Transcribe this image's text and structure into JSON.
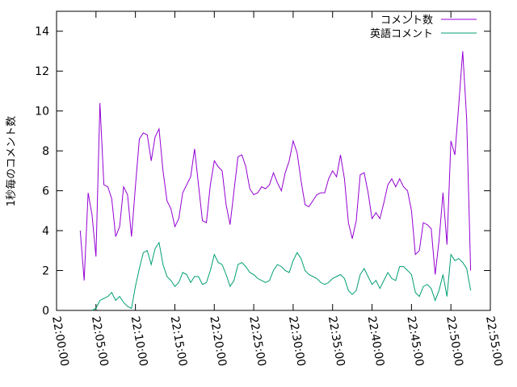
{
  "chart_data": {
    "type": "line",
    "title": "",
    "xlabel": "",
    "ylabel": "1秒毎のコメント数",
    "ylim": [
      0,
      15
    ],
    "xlim": [
      "22:00:00",
      "22:55:00"
    ],
    "x_ticks": [
      "22:00:00",
      "22:05:00",
      "22:10:00",
      "22:15:00",
      "22:20:00",
      "22:25:00",
      "22:30:00",
      "22:35:00",
      "22:40:00",
      "22:45:00",
      "22:50:00",
      "22:55:00"
    ],
    "y_ticks": [
      "0",
      "2",
      "4",
      "6",
      "8",
      "10",
      "12",
      "14"
    ],
    "grid": false,
    "legend_position": "top-right",
    "series": [
      {
        "name": "コメント数",
        "color": "#9400d3",
        "points": [
          [
            "22:03:00",
            4.0
          ],
          [
            "22:03:30",
            1.5
          ],
          [
            "22:04:00",
            5.9
          ],
          [
            "22:04:30",
            4.8
          ],
          [
            "22:05:00",
            2.7
          ],
          [
            "22:05:30",
            10.4
          ],
          [
            "22:06:00",
            6.3
          ],
          [
            "22:06:30",
            6.2
          ],
          [
            "22:07:00",
            5.6
          ],
          [
            "22:07:30",
            3.7
          ],
          [
            "22:08:00",
            4.2
          ],
          [
            "22:08:30",
            6.2
          ],
          [
            "22:09:00",
            5.8
          ],
          [
            "22:09:30",
            3.7
          ],
          [
            "22:10:00",
            6.2
          ],
          [
            "22:10:30",
            8.6
          ],
          [
            "22:11:00",
            8.9
          ],
          [
            "22:11:30",
            8.8
          ],
          [
            "22:12:00",
            7.5
          ],
          [
            "22:12:30",
            8.7
          ],
          [
            "22:13:00",
            9.1
          ],
          [
            "22:13:30",
            7.0
          ],
          [
            "22:14:00",
            5.5
          ],
          [
            "22:14:30",
            5.1
          ],
          [
            "22:15:00",
            4.2
          ],
          [
            "22:15:30",
            4.6
          ],
          [
            "22:16:00",
            5.9
          ],
          [
            "22:16:30",
            6.3
          ],
          [
            "22:17:00",
            6.7
          ],
          [
            "22:17:30",
            8.1
          ],
          [
            "22:18:00",
            6.3
          ],
          [
            "22:18:30",
            4.5
          ],
          [
            "22:19:00",
            4.4
          ],
          [
            "22:19:30",
            6.3
          ],
          [
            "22:20:00",
            7.5
          ],
          [
            "22:20:30",
            7.2
          ],
          [
            "22:21:00",
            7.0
          ],
          [
            "22:21:30",
            5.3
          ],
          [
            "22:22:00",
            4.3
          ],
          [
            "22:22:30",
            6.0
          ],
          [
            "22:23:00",
            7.7
          ],
          [
            "22:23:30",
            7.8
          ],
          [
            "22:24:00",
            7.2
          ],
          [
            "22:24:30",
            6.1
          ],
          [
            "22:25:00",
            5.8
          ],
          [
            "22:25:30",
            5.9
          ],
          [
            "22:26:00",
            6.2
          ],
          [
            "22:26:30",
            6.1
          ],
          [
            "22:27:00",
            6.3
          ],
          [
            "22:27:30",
            6.9
          ],
          [
            "22:28:00",
            6.4
          ],
          [
            "22:28:30",
            6.0
          ],
          [
            "22:29:00",
            6.9
          ],
          [
            "22:29:30",
            7.5
          ],
          [
            "22:30:00",
            8.5
          ],
          [
            "22:30:30",
            7.9
          ],
          [
            "22:31:00",
            6.5
          ],
          [
            "22:31:30",
            5.3
          ],
          [
            "22:32:00",
            5.2
          ],
          [
            "22:32:30",
            5.5
          ],
          [
            "22:33:00",
            5.8
          ],
          [
            "22:33:30",
            5.9
          ],
          [
            "22:34:00",
            5.9
          ],
          [
            "22:34:30",
            6.6
          ],
          [
            "22:35:00",
            7.0
          ],
          [
            "22:35:30",
            6.7
          ],
          [
            "22:36:00",
            7.8
          ],
          [
            "22:36:30",
            6.6
          ],
          [
            "22:37:00",
            4.4
          ],
          [
            "22:37:30",
            3.6
          ],
          [
            "22:38:00",
            4.5
          ],
          [
            "22:38:30",
            6.8
          ],
          [
            "22:39:00",
            6.9
          ],
          [
            "22:39:30",
            5.9
          ],
          [
            "22:40:00",
            4.6
          ],
          [
            "22:40:30",
            4.9
          ],
          [
            "22:41:00",
            4.6
          ],
          [
            "22:41:30",
            5.4
          ],
          [
            "22:42:00",
            6.3
          ],
          [
            "22:42:30",
            6.6
          ],
          [
            "22:43:00",
            6.2
          ],
          [
            "22:43:30",
            6.6
          ],
          [
            "22:44:00",
            6.2
          ],
          [
            "22:44:30",
            6.0
          ],
          [
            "22:45:00",
            5.0
          ],
          [
            "22:45:30",
            2.8
          ],
          [
            "22:46:00",
            3.0
          ],
          [
            "22:46:30",
            4.4
          ],
          [
            "22:47:00",
            4.3
          ],
          [
            "22:47:30",
            4.1
          ],
          [
            "22:48:00",
            1.8
          ],
          [
            "22:48:30",
            3.5
          ],
          [
            "22:49:00",
            5.9
          ],
          [
            "22:49:30",
            3.3
          ],
          [
            "22:50:00",
            8.5
          ],
          [
            "22:50:30",
            7.8
          ],
          [
            "22:51:00",
            10.3
          ],
          [
            "22:51:30",
            13.0
          ],
          [
            "22:52:00",
            9.6
          ],
          [
            "22:52:30",
            2.0
          ]
        ]
      },
      {
        "name": "英語コメント",
        "color": "#009e73",
        "points": [
          [
            "22:04:30",
            0.0
          ],
          [
            "22:05:00",
            0.1
          ],
          [
            "22:05:30",
            0.5
          ],
          [
            "22:06:00",
            0.6
          ],
          [
            "22:06:30",
            0.7
          ],
          [
            "22:07:00",
            0.9
          ],
          [
            "22:07:30",
            0.5
          ],
          [
            "22:08:00",
            0.7
          ],
          [
            "22:08:30",
            0.4
          ],
          [
            "22:09:00",
            0.2
          ],
          [
            "22:09:30",
            0.1
          ],
          [
            "22:10:00",
            1.2
          ],
          [
            "22:10:30",
            2.1
          ],
          [
            "22:11:00",
            2.9
          ],
          [
            "22:11:30",
            3.0
          ],
          [
            "22:12:00",
            2.3
          ],
          [
            "22:12:30",
            3.1
          ],
          [
            "22:13:00",
            3.4
          ],
          [
            "22:13:30",
            2.3
          ],
          [
            "22:14:00",
            1.7
          ],
          [
            "22:14:30",
            1.5
          ],
          [
            "22:15:00",
            1.2
          ],
          [
            "22:15:30",
            1.4
          ],
          [
            "22:16:00",
            1.9
          ],
          [
            "22:16:30",
            1.8
          ],
          [
            "22:17:00",
            1.4
          ],
          [
            "22:17:30",
            1.7
          ],
          [
            "22:18:00",
            1.7
          ],
          [
            "22:18:30",
            1.3
          ],
          [
            "22:19:00",
            1.4
          ],
          [
            "22:19:30",
            2.0
          ],
          [
            "22:20:00",
            2.8
          ],
          [
            "22:20:30",
            2.4
          ],
          [
            "22:21:00",
            2.3
          ],
          [
            "22:21:30",
            1.8
          ],
          [
            "22:22:00",
            1.2
          ],
          [
            "22:22:30",
            1.5
          ],
          [
            "22:23:00",
            2.3
          ],
          [
            "22:23:30",
            2.4
          ],
          [
            "22:24:00",
            2.2
          ],
          [
            "22:24:30",
            1.9
          ],
          [
            "22:25:00",
            1.8
          ],
          [
            "22:25:30",
            1.6
          ],
          [
            "22:26:00",
            1.5
          ],
          [
            "22:26:30",
            1.4
          ],
          [
            "22:27:00",
            1.5
          ],
          [
            "22:27:30",
            2.0
          ],
          [
            "22:28:00",
            2.3
          ],
          [
            "22:28:30",
            2.2
          ],
          [
            "22:29:00",
            2.0
          ],
          [
            "22:29:30",
            1.9
          ],
          [
            "22:30:00",
            2.5
          ],
          [
            "22:30:30",
            2.9
          ],
          [
            "22:31:00",
            2.6
          ],
          [
            "22:31:30",
            2.0
          ],
          [
            "22:32:00",
            1.8
          ],
          [
            "22:32:30",
            1.7
          ],
          [
            "22:33:00",
            1.6
          ],
          [
            "22:33:30",
            1.4
          ],
          [
            "22:34:00",
            1.3
          ],
          [
            "22:34:30",
            1.4
          ],
          [
            "22:35:00",
            1.6
          ],
          [
            "22:35:30",
            1.7
          ],
          [
            "22:36:00",
            1.8
          ],
          [
            "22:36:30",
            1.6
          ],
          [
            "22:37:00",
            1.0
          ],
          [
            "22:37:30",
            0.8
          ],
          [
            "22:38:00",
            1.0
          ],
          [
            "22:38:30",
            1.8
          ],
          [
            "22:39:00",
            2.1
          ],
          [
            "22:39:30",
            1.7
          ],
          [
            "22:40:00",
            1.3
          ],
          [
            "22:40:30",
            1.5
          ],
          [
            "22:41:00",
            1.1
          ],
          [
            "22:41:30",
            1.5
          ],
          [
            "22:42:00",
            1.9
          ],
          [
            "22:42:30",
            1.6
          ],
          [
            "22:43:00",
            1.5
          ],
          [
            "22:43:30",
            2.2
          ],
          [
            "22:44:00",
            2.2
          ],
          [
            "22:44:30",
            2.0
          ],
          [
            "22:45:00",
            1.8
          ],
          [
            "22:45:30",
            0.9
          ],
          [
            "22:46:00",
            0.7
          ],
          [
            "22:46:30",
            1.2
          ],
          [
            "22:47:00",
            1.3
          ],
          [
            "22:47:30",
            1.1
          ],
          [
            "22:48:00",
            0.5
          ],
          [
            "22:48:30",
            1.0
          ],
          [
            "22:49:00",
            1.8
          ],
          [
            "22:49:30",
            0.7
          ],
          [
            "22:50:00",
            2.8
          ],
          [
            "22:50:30",
            2.5
          ],
          [
            "22:51:00",
            2.6
          ],
          [
            "22:51:30",
            2.4
          ],
          [
            "22:52:00",
            2.1
          ],
          [
            "22:52:30",
            1.0
          ]
        ]
      }
    ]
  }
}
